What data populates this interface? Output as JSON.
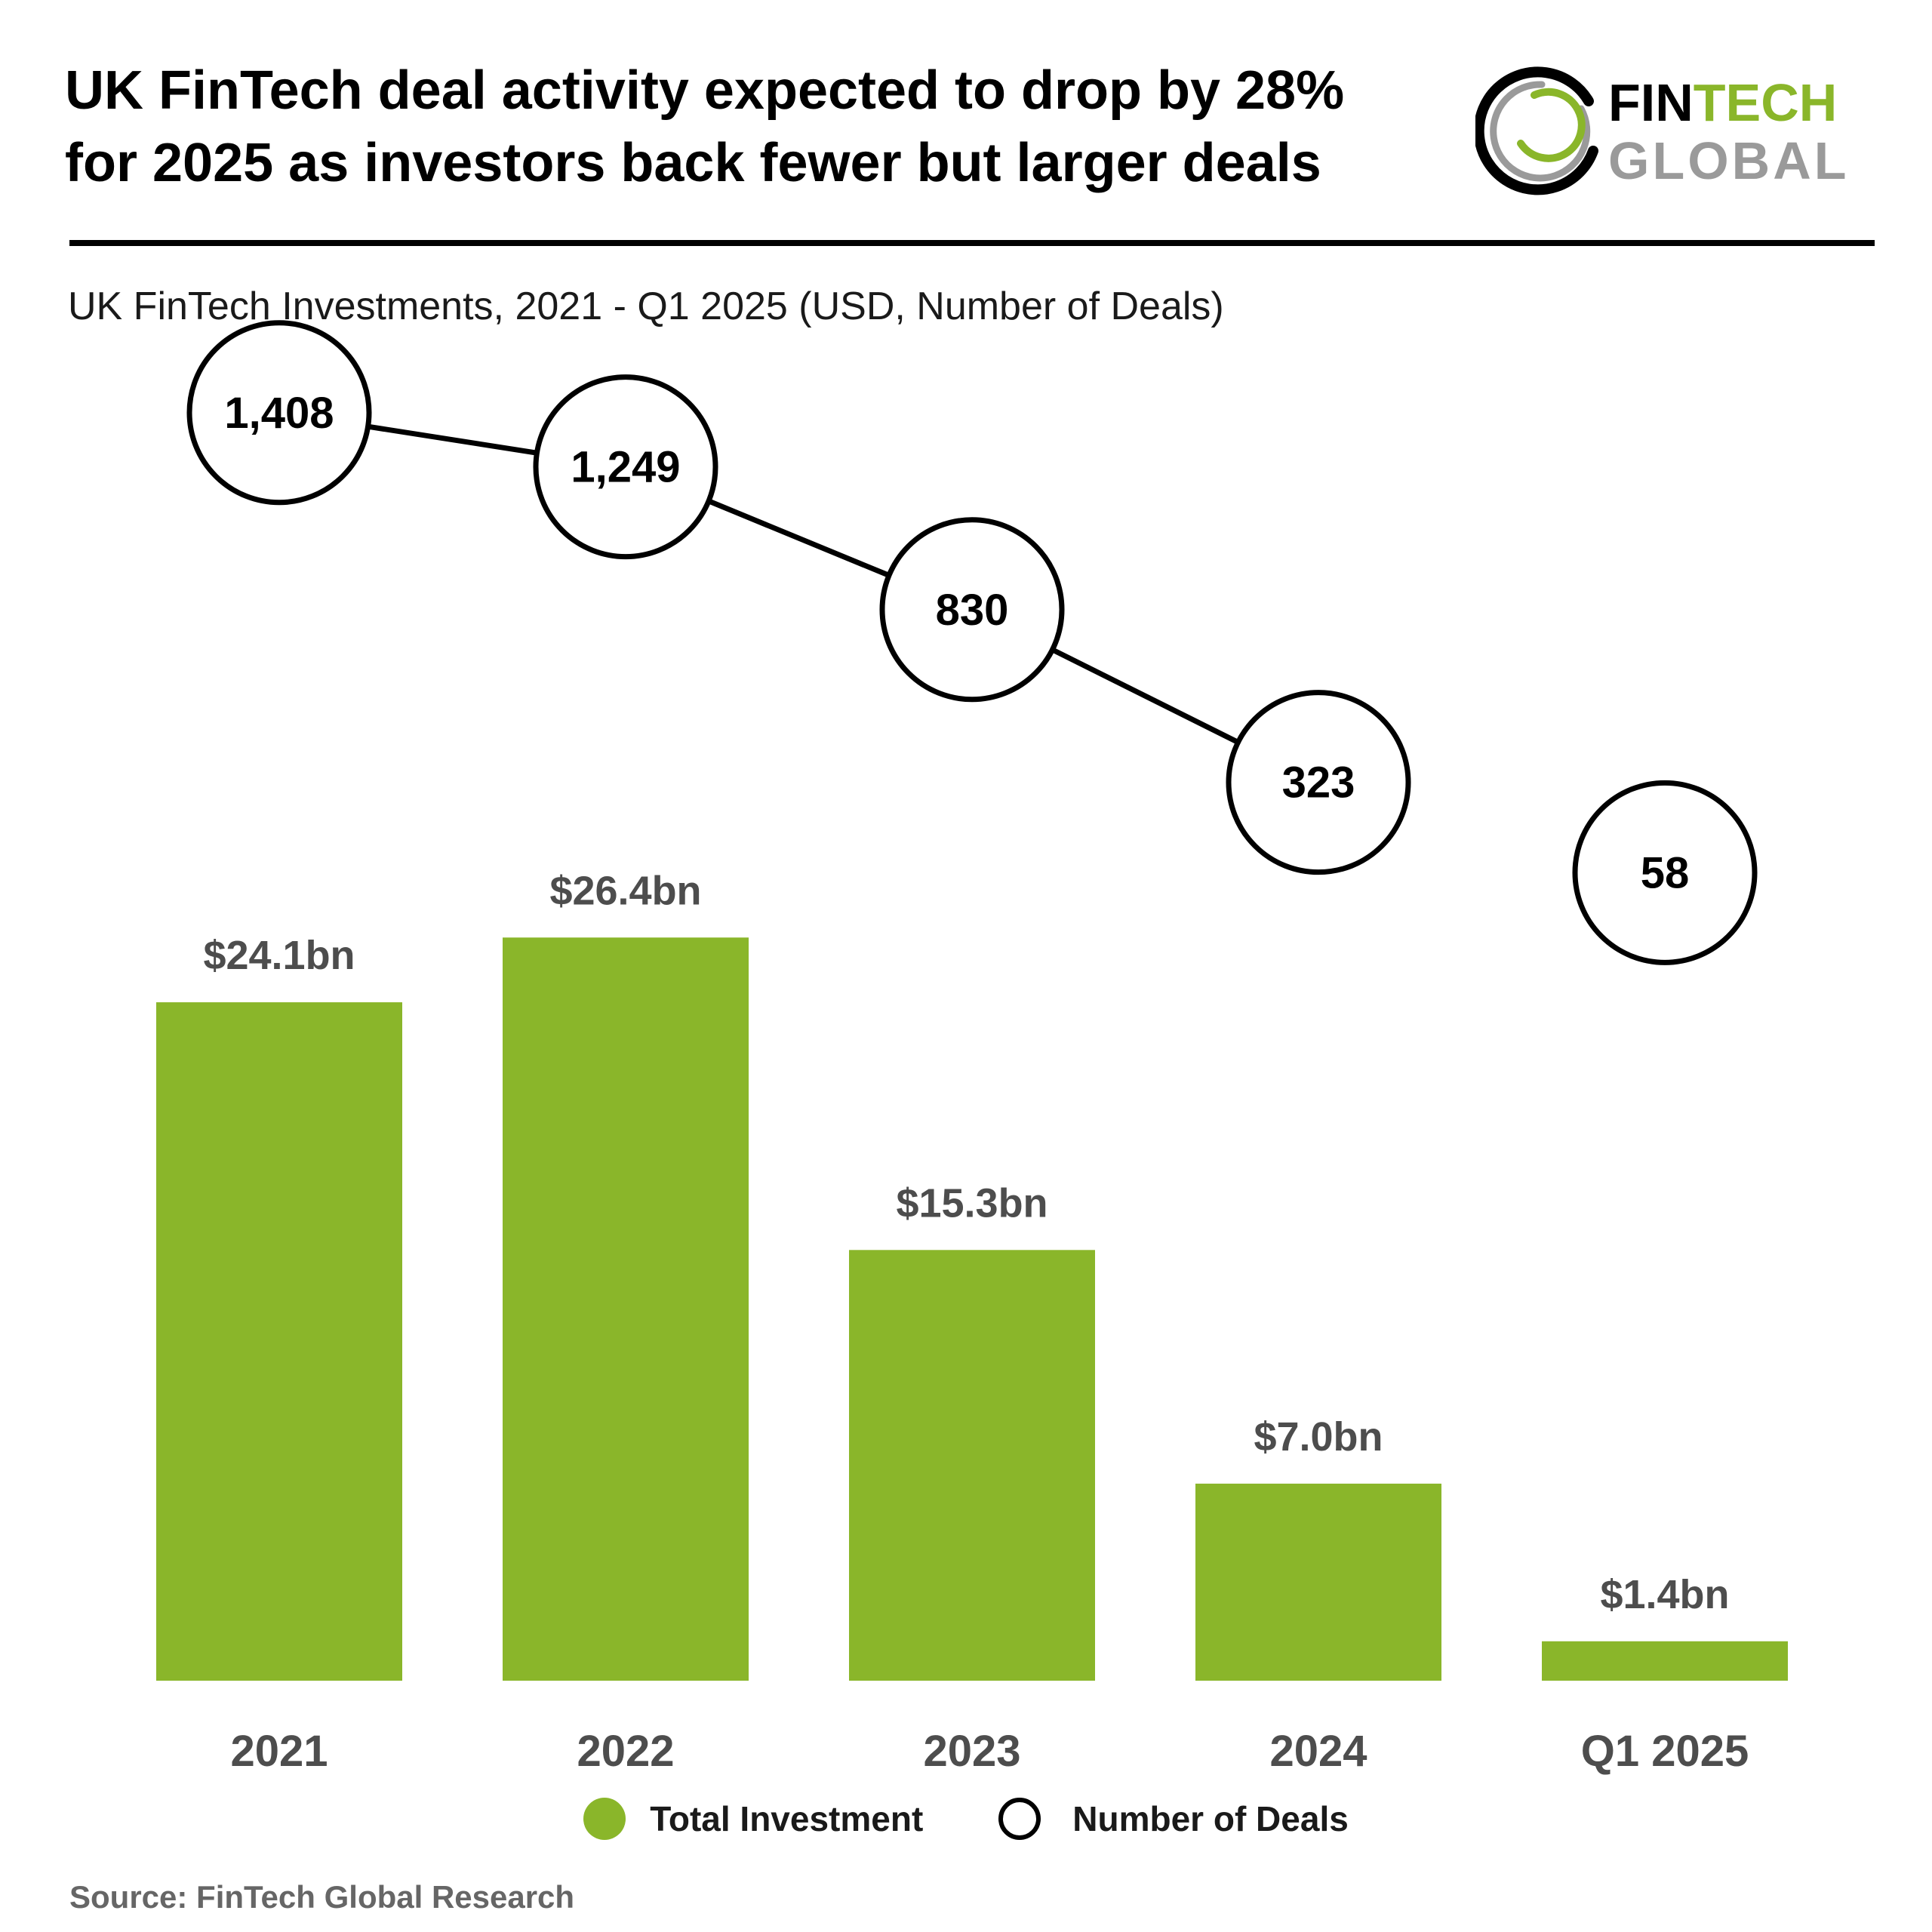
{
  "headline": {
    "line1": "UK FinTech deal activity expected to drop by 28%",
    "line2": "for 2025 as investors back fewer but larger deals"
  },
  "logo": {
    "word1": "FINTECH",
    "word2": "GLOBAL",
    "icon": "ring-logo-icon"
  },
  "subtitle": "UK FinTech Investments, 2021 - Q1 2025 (USD, Number of Deals)",
  "legend": {
    "investment": "Total Investment",
    "deals": "Number of Deals"
  },
  "source": "Source: FinTech Global Research",
  "colors": {
    "bar": "#8ab62a",
    "value_label": "#4d4d4d",
    "axis_label": "#4d4d4d",
    "circle_stroke": "#000000",
    "logo_green": "#8ab62a",
    "logo_grey": "#9a9a9a"
  },
  "chart_data": {
    "type": "bar",
    "categories": [
      "2021",
      "2022",
      "2023",
      "2024",
      "Q1 2025"
    ],
    "series": [
      {
        "name": "Total Investment",
        "type": "bar",
        "values": [
          24.1,
          26.4,
          15.3,
          7.0,
          1.4
        ],
        "labels": [
          "$24.1bn",
          "$26.4bn",
          "$15.3bn",
          "$7.0bn",
          "$1.4bn"
        ]
      },
      {
        "name": "Number of Deals",
        "type": "line",
        "values": [
          1408,
          1249,
          830,
          323,
          58
        ],
        "labels": [
          "1,408",
          "1,249",
          "830",
          "323",
          "58"
        ],
        "connected_to": 3
      }
    ],
    "ylim_investment": [
      0,
      30
    ],
    "ylim_deals": [
      0,
      2000
    ],
    "grid": false,
    "legend_position": "bottom-center"
  }
}
